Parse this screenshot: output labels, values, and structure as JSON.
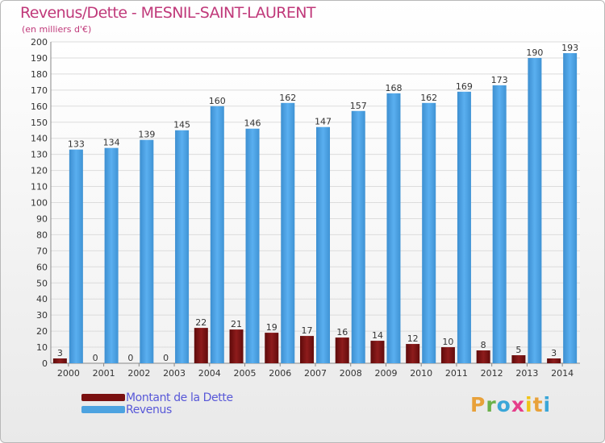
{
  "title": "Revenus/Dette - MESNIL-SAINT-LAURENT",
  "subtitle": "(en milliers d'€)",
  "logo": {
    "letters": [
      "P",
      "r",
      "o",
      "x",
      "i",
      "t",
      "i"
    ],
    "colors": [
      "#e8a13a",
      "#6bb14a",
      "#3aa6d8",
      "#e53e8a",
      "#f0c419",
      "#e8a13a",
      "#3aa6d8"
    ]
  },
  "legend": [
    {
      "label": "Montant de la Dette",
      "color": "#7a1010"
    },
    {
      "label": "Revenus",
      "color": "#4da3e0"
    }
  ],
  "chart_data": {
    "type": "bar",
    "title": "Revenus/Dette - MESNIL-SAINT-LAURENT",
    "ylabel": "(en milliers d'€)",
    "categories": [
      "2000",
      "2001",
      "2002",
      "2003",
      "2004",
      "2005",
      "2006",
      "2007",
      "2008",
      "2009",
      "2010",
      "2011",
      "2012",
      "2013",
      "2014"
    ],
    "series": [
      {
        "name": "Montant de la Dette",
        "color": "#7a1010",
        "values": [
          3,
          0,
          0,
          0,
          22,
          21,
          19,
          17,
          16,
          14,
          12,
          10,
          8,
          5,
          3
        ]
      },
      {
        "name": "Revenus",
        "color": "#4da3e0",
        "values": [
          133,
          134,
          139,
          145,
          160,
          146,
          162,
          147,
          157,
          168,
          162,
          169,
          173,
          190,
          193
        ]
      }
    ],
    "ylim": [
      0,
      200
    ],
    "yticks": [
      0,
      10,
      20,
      30,
      40,
      50,
      60,
      70,
      80,
      90,
      100,
      110,
      120,
      130,
      140,
      150,
      160,
      170,
      180,
      190,
      200
    ],
    "grid": true,
    "legend_position": "bottom-left"
  }
}
